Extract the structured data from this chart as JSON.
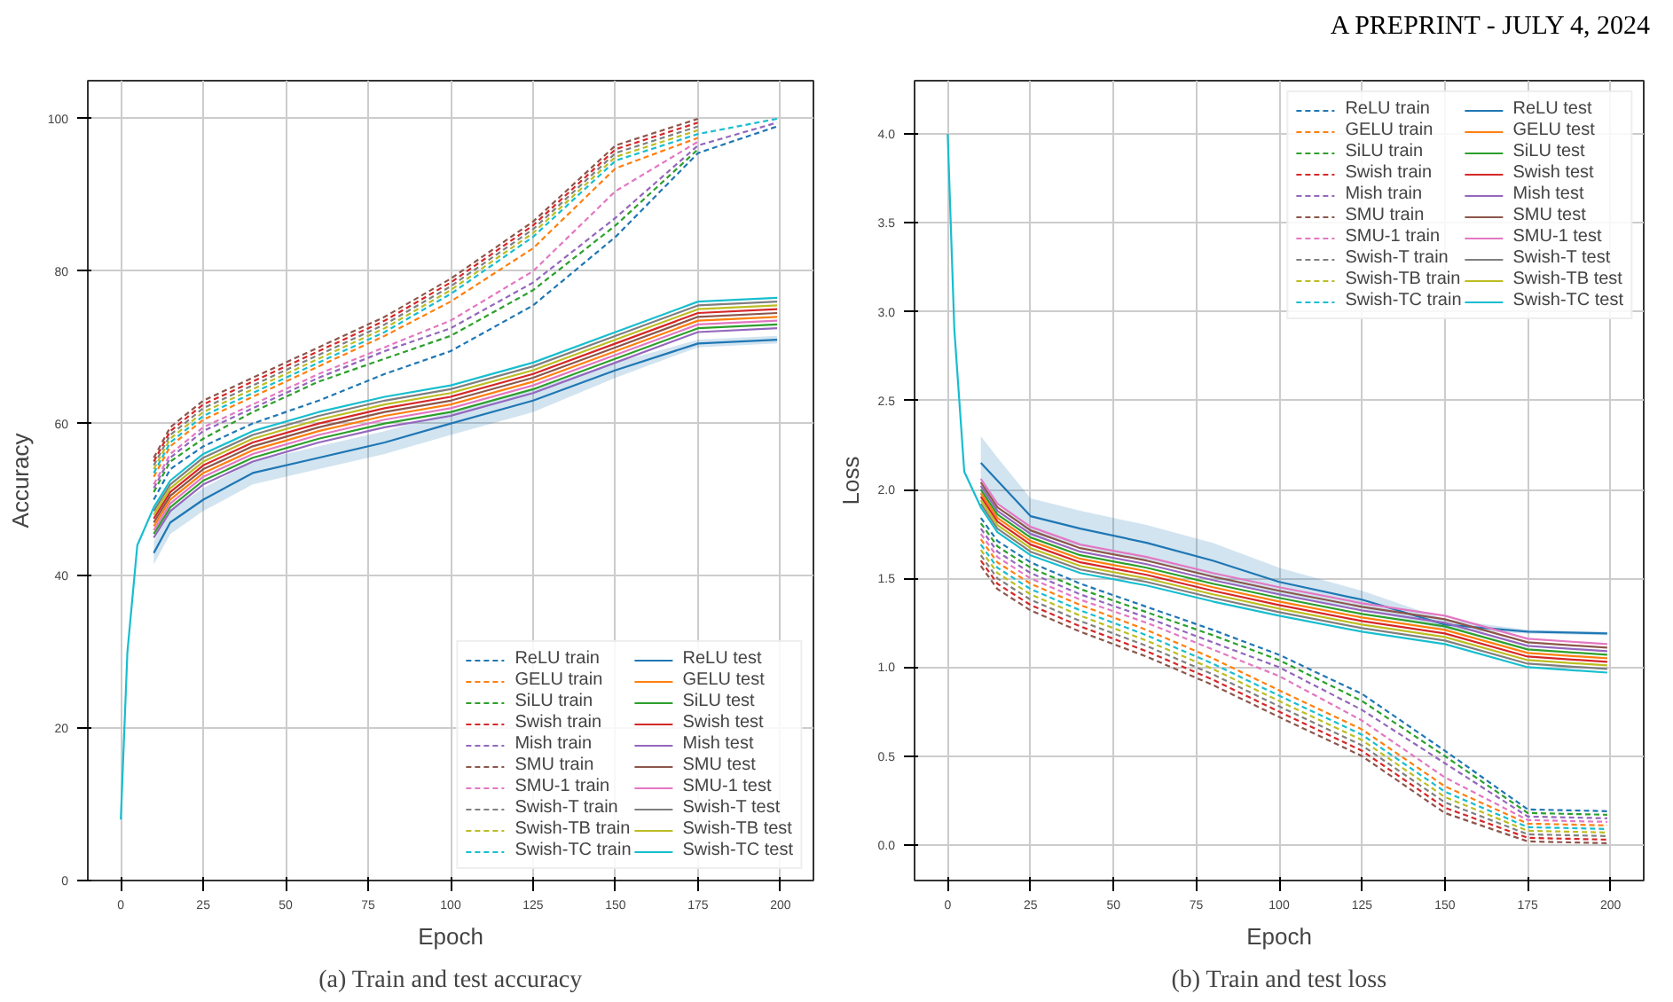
{
  "chart_data": [
    {
      "type": "line",
      "title": "(a) Train and test accuracy",
      "xlabel": "Epoch",
      "ylabel": "Accuracy",
      "annotations": [
        "A PREPRINT - JULY 4, 2024"
      ],
      "xlim": [
        -10,
        210
      ],
      "ylim": [
        0,
        105
      ],
      "xticks": [
        0,
        25,
        50,
        75,
        100,
        125,
        150,
        175,
        200
      ],
      "yticks": [
        0,
        20,
        40,
        60,
        80,
        100
      ],
      "grid": true,
      "legend": "bottom right",
      "x": [
        0,
        2,
        5,
        10,
        15,
        25,
        40,
        60,
        80,
        100,
        125,
        150,
        175,
        199
      ],
      "series": [
        {
          "name": "ReLU train",
          "color": "#1f77b4",
          "line_style": "dashed",
          "values": [
            null,
            null,
            null,
            50,
            54,
            57,
            60,
            63,
            66.5,
            69.5,
            75.5,
            84.5,
            95.5,
            99
          ]
        },
        {
          "name": "GELU train",
          "color": "#ff7f0e",
          "line_style": "dashed",
          "values": [
            null,
            null,
            null,
            53,
            57,
            60.5,
            63.5,
            67.5,
            71.5,
            76,
            83,
            93.5,
            97.5,
            null
          ]
        },
        {
          "name": "SiLU train",
          "color": "#2ca02c",
          "line_style": "dashed",
          "values": [
            null,
            null,
            null,
            51,
            55,
            58,
            61.5,
            65.5,
            68.5,
            71.5,
            77.5,
            86,
            96,
            null
          ]
        },
        {
          "name": "Swish train",
          "color": "#d62728",
          "line_style": "dashed",
          "values": [
            null,
            null,
            null,
            55,
            59,
            62.5,
            65.5,
            69.5,
            73.5,
            78.5,
            86,
            96,
            99.5,
            null
          ]
        },
        {
          "name": "Mish train",
          "color": "#9467bd",
          "line_style": "dashed",
          "values": [
            null,
            null,
            null,
            51.5,
            55.5,
            59,
            62,
            66,
            69.5,
            72.5,
            78.5,
            87,
            96.5,
            99.5
          ]
        },
        {
          "name": "SMU train",
          "color": "#8c564b",
          "line_style": "dashed",
          "values": [
            null,
            null,
            null,
            55.5,
            59.5,
            63,
            66,
            70,
            74,
            79,
            86.5,
            96.5,
            100,
            null
          ]
        },
        {
          "name": "SMU-1 train",
          "color": "#e377c2",
          "line_style": "dashed",
          "values": [
            null,
            null,
            null,
            52,
            56,
            59.5,
            62.5,
            66.5,
            70,
            73.5,
            80,
            90.5,
            97,
            null
          ]
        },
        {
          "name": "Swish-T train",
          "color": "#7f7f7f",
          "line_style": "dashed",
          "values": [
            null,
            null,
            null,
            54.5,
            58.5,
            62,
            65,
            69,
            73,
            78,
            85.5,
            95.5,
            99,
            null
          ]
        },
        {
          "name": "Swish-TB train",
          "color": "#bcbd22",
          "line_style": "dashed",
          "values": [
            null,
            null,
            null,
            54,
            58,
            61.5,
            64.5,
            68.5,
            72.5,
            77.5,
            85,
            95,
            98.5,
            null
          ]
        },
        {
          "name": "Swish-TC train",
          "color": "#17becf",
          "line_style": "dashed",
          "values": [
            null,
            null,
            null,
            53.5,
            57.5,
            61,
            64,
            68,
            72,
            77,
            84.5,
            94.5,
            98,
            100
          ]
        },
        {
          "name": "ReLU test",
          "color": "#1f77b4",
          "line_style": "solid",
          "values": [
            null,
            null,
            null,
            43,
            47,
            50,
            53.5,
            55.5,
            57.5,
            60,
            63,
            67,
            70.5,
            71
          ],
          "lower": [
            null,
            null,
            null,
            41.5,
            45.5,
            48.5,
            52,
            54,
            56,
            58.5,
            61.5,
            66,
            70,
            70.5
          ],
          "upper": [
            null,
            null,
            null,
            44.5,
            48.5,
            51.5,
            55,
            57,
            59,
            61.5,
            64.5,
            68,
            71,
            71.5
          ]
        },
        {
          "name": "GELU test",
          "color": "#ff7f0e",
          "line_style": "solid",
          "values": [
            null,
            null,
            null,
            46.5,
            50,
            53.5,
            56.5,
            59,
            61,
            62.5,
            65.5,
            69.5,
            73.5,
            74
          ]
        },
        {
          "name": "SiLU test",
          "color": "#2ca02c",
          "line_style": "solid",
          "values": [
            null,
            null,
            null,
            45.5,
            49,
            52.5,
            55.5,
            58,
            60,
            61.5,
            64.5,
            68.5,
            72.5,
            73
          ]
        },
        {
          "name": "Swish test",
          "color": "#d62728",
          "line_style": "solid",
          "values": [
            null,
            null,
            null,
            47.5,
            51,
            54.5,
            57.5,
            60,
            62,
            63.5,
            66.5,
            70.5,
            74.5,
            75
          ]
        },
        {
          "name": "Mish test",
          "color": "#9467bd",
          "line_style": "solid",
          "values": [
            null,
            null,
            null,
            45,
            48.5,
            52,
            55,
            57.5,
            59.5,
            61,
            64,
            68,
            72,
            72.5
          ]
        },
        {
          "name": "SMU test",
          "color": "#8c564b",
          "line_style": "solid",
          "values": [
            null,
            null,
            null,
            47,
            50.5,
            54,
            57,
            59.5,
            61.5,
            63,
            66,
            70,
            74,
            74.5
          ]
        },
        {
          "name": "SMU-1 test",
          "color": "#e377c2",
          "line_style": "solid",
          "values": [
            null,
            null,
            null,
            46,
            49.5,
            53,
            56,
            58.5,
            60.5,
            62,
            65,
            69,
            73,
            73.5
          ]
        },
        {
          "name": "Swish-T test",
          "color": "#7f7f7f",
          "line_style": "solid",
          "values": [
            null,
            null,
            null,
            48.5,
            52,
            55.5,
            58.5,
            61,
            63,
            64.5,
            67.5,
            71.5,
            75.5,
            76
          ]
        },
        {
          "name": "Swish-TB test",
          "color": "#bcbd22",
          "line_style": "solid",
          "values": [
            null,
            null,
            null,
            48,
            51.5,
            55,
            58,
            60.5,
            62.5,
            64,
            67,
            71,
            75,
            75.5
          ]
        },
        {
          "name": "Swish-TC test",
          "color": "#17becf",
          "line_style": "solid",
          "values": [
            8,
            30,
            44,
            49,
            52.5,
            56,
            59,
            61.5,
            63.5,
            65,
            68,
            72,
            76,
            76.5
          ]
        }
      ]
    },
    {
      "type": "line",
      "title": "(b) Train and test loss",
      "xlabel": "Epoch",
      "ylabel": "Loss",
      "xlim": [
        -10,
        210
      ],
      "ylim": [
        -0.2,
        4.3
      ],
      "xticks": [
        0,
        25,
        50,
        75,
        100,
        125,
        150,
        175,
        200
      ],
      "yticks": [
        {
          "value": 0,
          "label": "0.0"
        },
        0.5,
        {
          "value": 1,
          "label": "1.0"
        },
        1.5,
        {
          "value": 2,
          "label": "2.0"
        },
        2.5,
        {
          "value": 3,
          "label": "3.0"
        },
        3.5,
        {
          "value": 4,
          "label": "4.0"
        }
      ],
      "grid": true,
      "legend": "top right",
      "x": [
        0,
        2,
        5,
        10,
        15,
        25,
        40,
        60,
        80,
        100,
        125,
        150,
        175,
        199
      ],
      "series": [
        {
          "name": "ReLU train",
          "color": "#1f77b4",
          "line_style": "dashed",
          "values": [
            null,
            null,
            null,
            1.84,
            1.71,
            1.59,
            1.47,
            1.34,
            1.21,
            1.07,
            0.85,
            0.53,
            0.2,
            0.19
          ]
        },
        {
          "name": "GELU train",
          "color": "#ff7f0e",
          "line_style": "dashed",
          "values": [
            null,
            null,
            null,
            1.72,
            1.59,
            1.47,
            1.35,
            1.21,
            1.05,
            0.87,
            0.65,
            0.33,
            0.12,
            0.11
          ]
        },
        {
          "name": "SiLU train",
          "color": "#2ca02c",
          "line_style": "dashed",
          "values": [
            null,
            null,
            null,
            1.81,
            1.68,
            1.56,
            1.44,
            1.31,
            1.18,
            1.04,
            0.81,
            0.5,
            0.18,
            0.17
          ]
        },
        {
          "name": "Swish train",
          "color": "#d62728",
          "line_style": "dashed",
          "values": [
            null,
            null,
            null,
            1.6,
            1.47,
            1.35,
            1.23,
            1.09,
            0.93,
            0.75,
            0.53,
            0.21,
            0.04,
            0.03
          ]
        },
        {
          "name": "Mish train",
          "color": "#9467bd",
          "line_style": "dashed",
          "values": [
            null,
            null,
            null,
            1.78,
            1.65,
            1.53,
            1.41,
            1.28,
            1.14,
            1.0,
            0.76,
            0.46,
            0.16,
            0.15
          ]
        },
        {
          "name": "SMU train",
          "color": "#8c564b",
          "line_style": "dashed",
          "values": [
            null,
            null,
            null,
            1.57,
            1.44,
            1.32,
            1.2,
            1.06,
            0.9,
            0.72,
            0.5,
            0.18,
            0.02,
            0.01
          ]
        },
        {
          "name": "SMU-1 train",
          "color": "#e377c2",
          "line_style": "dashed",
          "values": [
            null,
            null,
            null,
            1.75,
            1.62,
            1.5,
            1.38,
            1.25,
            1.1,
            0.95,
            0.7,
            0.38,
            0.14,
            0.13
          ]
        },
        {
          "name": "Swish-T train",
          "color": "#7f7f7f",
          "line_style": "dashed",
          "values": [
            null,
            null,
            null,
            1.63,
            1.5,
            1.38,
            1.26,
            1.12,
            0.96,
            0.78,
            0.56,
            0.24,
            0.06,
            0.05
          ]
        },
        {
          "name": "Swish-TB train",
          "color": "#bcbd22",
          "line_style": "dashed",
          "values": [
            null,
            null,
            null,
            1.66,
            1.53,
            1.41,
            1.29,
            1.15,
            0.99,
            0.81,
            0.59,
            0.27,
            0.08,
            0.07
          ]
        },
        {
          "name": "Swish-TC train",
          "color": "#17becf",
          "line_style": "dashed",
          "values": [
            null,
            null,
            null,
            1.69,
            1.56,
            1.44,
            1.32,
            1.18,
            1.02,
            0.84,
            0.62,
            0.3,
            0.1,
            0.09
          ]
        },
        {
          "name": "ReLU test",
          "color": "#1f77b4",
          "line_style": "solid",
          "values": [
            null,
            null,
            null,
            2.15,
            2.05,
            1.85,
            1.78,
            1.7,
            1.6,
            1.48,
            1.38,
            1.24,
            1.2,
            1.19
          ],
          "lower": [
            null,
            null,
            null,
            2.0,
            1.92,
            1.75,
            1.68,
            1.6,
            1.5,
            1.4,
            1.33,
            1.21,
            1.19,
            1.18
          ],
          "upper": [
            null,
            null,
            null,
            2.3,
            2.18,
            1.95,
            1.88,
            1.8,
            1.7,
            1.56,
            1.43,
            1.27,
            1.21,
            1.2
          ]
        },
        {
          "name": "GELU test",
          "color": "#ff7f0e",
          "line_style": "solid",
          "values": [
            null,
            null,
            null,
            1.98,
            1.84,
            1.71,
            1.61,
            1.54,
            1.45,
            1.37,
            1.28,
            1.21,
            1.08,
            1.05
          ]
        },
        {
          "name": "SiLU test",
          "color": "#2ca02c",
          "line_style": "solid",
          "values": [
            null,
            null,
            null,
            2.0,
            1.86,
            1.73,
            1.63,
            1.56,
            1.47,
            1.39,
            1.3,
            1.23,
            1.1,
            1.07
          ]
        },
        {
          "name": "Swish test",
          "color": "#d62728",
          "line_style": "solid",
          "values": [
            null,
            null,
            null,
            1.96,
            1.82,
            1.69,
            1.59,
            1.52,
            1.43,
            1.35,
            1.26,
            1.19,
            1.06,
            1.03
          ]
        },
        {
          "name": "Mish test",
          "color": "#9467bd",
          "line_style": "solid",
          "values": [
            null,
            null,
            null,
            2.02,
            1.88,
            1.75,
            1.65,
            1.58,
            1.49,
            1.41,
            1.32,
            1.25,
            1.12,
            1.09
          ]
        },
        {
          "name": "SMU test",
          "color": "#8c564b",
          "line_style": "solid",
          "values": [
            null,
            null,
            null,
            2.04,
            1.9,
            1.77,
            1.67,
            1.6,
            1.51,
            1.43,
            1.34,
            1.27,
            1.14,
            1.11
          ]
        },
        {
          "name": "SMU-1 test",
          "color": "#e377c2",
          "line_style": "solid",
          "values": [
            null,
            null,
            null,
            2.06,
            1.92,
            1.79,
            1.69,
            1.62,
            1.53,
            1.45,
            1.36,
            1.29,
            1.16,
            1.13
          ]
        },
        {
          "name": "Swish-T test",
          "color": "#7f7f7f",
          "line_style": "solid",
          "values": [
            null,
            null,
            null,
            1.92,
            1.78,
            1.65,
            1.55,
            1.48,
            1.39,
            1.31,
            1.22,
            1.15,
            1.02,
            0.99
          ]
        },
        {
          "name": "Swish-TB test",
          "color": "#bcbd22",
          "line_style": "solid",
          "values": [
            null,
            null,
            null,
            1.94,
            1.8,
            1.67,
            1.57,
            1.5,
            1.41,
            1.33,
            1.24,
            1.17,
            1.04,
            1.01
          ]
        },
        {
          "name": "Swish-TC test",
          "color": "#17becf",
          "line_style": "solid",
          "values": [
            4.0,
            2.9,
            2.1,
            1.9,
            1.76,
            1.63,
            1.53,
            1.46,
            1.37,
            1.29,
            1.2,
            1.13,
            1.0,
            0.97
          ]
        }
      ]
    }
  ]
}
